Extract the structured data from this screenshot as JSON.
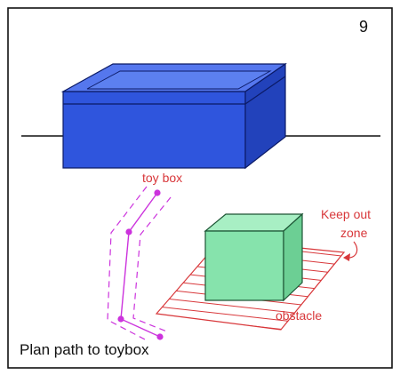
{
  "panel": {
    "number": "9",
    "caption": "Plan path to toybox"
  },
  "labels": {
    "toy_box": "toy box",
    "keep_out_line1": "Keep out",
    "keep_out_line2": "zone",
    "obstacle": "obstacle"
  },
  "colors": {
    "toy_box_front": "#2f55dd",
    "toy_box_top": "#5577ee",
    "toy_box_side": "#2242bb",
    "obstacle_front": "#86e3ac",
    "obstacle_top": "#a8efc4",
    "obstacle_side": "#6ccf94",
    "path": "#cc33dd",
    "annotation": "#d8373a"
  }
}
